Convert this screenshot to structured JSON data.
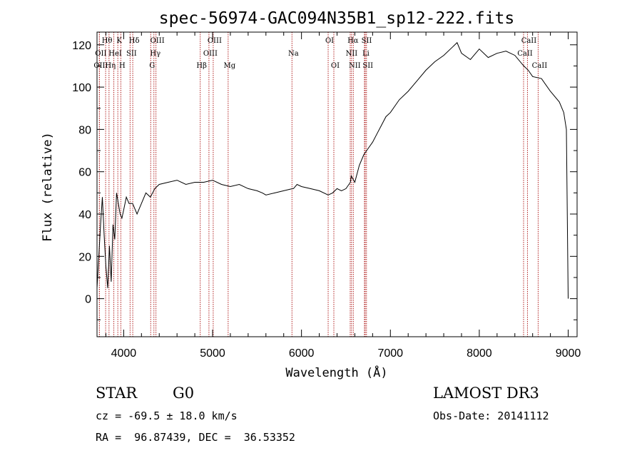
{
  "chart_data": {
    "type": "line",
    "title": "spec-56974-GAC094N35B1_sp12-222.fits",
    "xlabel": "Wavelength (Å)",
    "ylabel": "Flux (relative)",
    "xlim": [
      3700,
      9100
    ],
    "ylim": [
      -18,
      126
    ],
    "xticks": [
      4000,
      5000,
      6000,
      7000,
      8000,
      9000
    ],
    "yticks": [
      0,
      20,
      40,
      60,
      80,
      100,
      120
    ],
    "grid": false,
    "line_color": "#000000",
    "marker_color": "#b22222",
    "series": [
      {
        "x": [
          3700,
          3720,
          3740,
          3760,
          3780,
          3800,
          3820,
          3840,
          3860,
          3880,
          3900,
          3920,
          3940,
          3960,
          3980,
          4000,
          4030,
          4060,
          4100,
          4150,
          4200,
          4250,
          4300,
          4350,
          4400,
          4500,
          4600,
          4700,
          4800,
          4900,
          5000,
          5100,
          5200,
          5300,
          5400,
          5500,
          5560,
          5600,
          5700,
          5800,
          5900,
          5910,
          5950,
          6000,
          6100,
          6200,
          6300,
          6350,
          6400,
          6450,
          6500,
          6550,
          6560,
          6600,
          6650,
          6700,
          6750,
          6800,
          6850,
          6900,
          6950,
          7000,
          7100,
          7200,
          7300,
          7400,
          7500,
          7600,
          7700,
          7750,
          7800,
          7900,
          8000,
          8100,
          8200,
          8300,
          8400,
          8500,
          8550,
          8600,
          8700,
          8800,
          8900,
          8950,
          8980,
          9000
        ],
        "y": [
          5,
          20,
          35,
          48,
          30,
          15,
          5,
          25,
          8,
          35,
          28,
          50,
          45,
          40,
          38,
          42,
          48,
          45,
          45,
          40,
          45,
          50,
          48,
          52,
          54,
          55,
          56,
          54,
          55,
          55,
          56,
          54,
          53,
          54,
          52,
          51,
          50,
          49,
          50,
          51,
          52,
          52,
          54,
          53,
          52,
          51,
          49,
          50,
          52,
          51,
          52,
          55,
          58,
          55,
          63,
          68,
          71,
          74,
          78,
          82,
          86,
          88,
          94,
          98,
          103,
          108,
          112,
          115,
          119,
          121,
          116,
          113,
          118,
          114,
          116,
          117,
          115,
          110,
          108,
          105,
          104,
          98,
          93,
          88,
          80,
          0
        ]
      }
    ],
    "emission_lines": [
      {
        "label": "Hθ",
        "wl": 3797,
        "row": 0
      },
      {
        "label": "K",
        "wl": 3934,
        "row": 0
      },
      {
        "label": "Hδ",
        "wl": 4102,
        "row": 0
      },
      {
        "label": "OIII",
        "wl": 4363,
        "row": 0
      },
      {
        "label": "OIII",
        "wl": 5007,
        "row": 0
      },
      {
        "label": "OI",
        "wl": 6300,
        "row": 0
      },
      {
        "label": "Hα",
        "wl": 6563,
        "row": 0
      },
      {
        "label": "SII",
        "wl": 6717,
        "row": 0
      },
      {
        "label": "CaII",
        "wl": 8542,
        "row": 0
      },
      {
        "label": "OII",
        "wl": 3727,
        "row": 1
      },
      {
        "label": "HeI",
        "wl": 3889,
        "row": 1
      },
      {
        "label": "SII",
        "wl": 4072,
        "row": 1
      },
      {
        "label": "Hγ",
        "wl": 4340,
        "row": 1
      },
      {
        "label": "OIII",
        "wl": 4959,
        "row": 1
      },
      {
        "label": "Na",
        "wl": 5893,
        "row": 1
      },
      {
        "label": "NII",
        "wl": 6548,
        "row": 1
      },
      {
        "label": "Li",
        "wl": 6708,
        "row": 1
      },
      {
        "label": "CaII",
        "wl": 8498,
        "row": 1
      },
      {
        "label": "OIII",
        "wl": 3727,
        "row": 2
      },
      {
        "label": "Hη",
        "wl": 3835,
        "row": 2
      },
      {
        "label": "H",
        "wl": 3968,
        "row": 2
      },
      {
        "label": "G",
        "wl": 4304,
        "row": 2
      },
      {
        "label": "Hβ",
        "wl": 4861,
        "row": 2
      },
      {
        "label": "Mg",
        "wl": 5175,
        "row": 2
      },
      {
        "label": "OI",
        "wl": 6364,
        "row": 2
      },
      {
        "label": "NII",
        "wl": 6583,
        "row": 2
      },
      {
        "label": "SII",
        "wl": 6731,
        "row": 2
      },
      {
        "label": "CaII",
        "wl": 8662,
        "row": 2
      }
    ]
  },
  "info": {
    "object_class": "STAR",
    "subclass": "G0",
    "survey": "LAMOST DR3",
    "cz": "cz = -69.5 ± 18.0 km/s",
    "obs_date": "Obs-Date: 20141112",
    "coords": "RA =  96.87439, DEC =  36.53352"
  }
}
